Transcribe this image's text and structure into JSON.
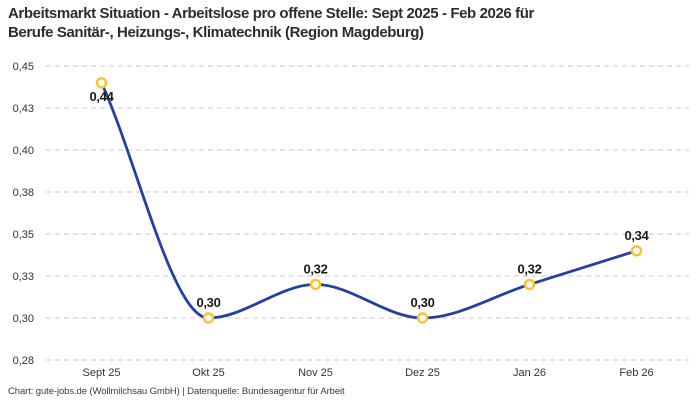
{
  "title_lines": [
    "Arbeitsmarkt Situation - Arbeitslose pro offene Stelle: Sept 2025 - Feb 2026 für",
    "Berufe Sanitär-, Heizungs-, Klimatechnik (Region Magdeburg)"
  ],
  "footer": "Chart: gute-jobs.de (Wollmilchsau GmbH) | Datenquelle: Bundesagentur für Arbeit",
  "chart_data": {
    "type": "line",
    "title": "Arbeitsmarkt Situation - Arbeitslose pro offene Stelle: Sept 2025 - Feb 2026 für Berufe Sanitär-, Heizungs-, Klimatechnik (Region Magdeburg)",
    "categories": [
      "Sept 25",
      "Okt 25",
      "Nov 25",
      "Dez 25",
      "Jan 26",
      "Feb 26"
    ],
    "values": [
      0.44,
      0.3,
      0.32,
      0.3,
      0.32,
      0.34
    ],
    "point_labels": [
      "0,44",
      "0,30",
      "0,32",
      "0,30",
      "0,32",
      "0,34"
    ],
    "label_positions": [
      "below",
      "above",
      "above",
      "above",
      "above",
      "above"
    ],
    "y_ticks": [
      0.275,
      0.3,
      0.325,
      0.35,
      0.375,
      0.4,
      0.425,
      0.45
    ],
    "y_tick_labels": [
      "0,28",
      "0,30",
      "0,33",
      "0,35",
      "0,38",
      "0,40",
      "0,43",
      "0,45"
    ],
    "ylim": [
      0.275,
      0.45
    ],
    "xlabel": "",
    "ylabel": "",
    "legend": "none",
    "grid": "dashed-horizontal",
    "curve": "monotone-spline",
    "colors": {
      "line": "#2340A3",
      "marker_stroke": "#F9C22E",
      "marker_fill": "#ffffff",
      "grid": "#c9c9c9",
      "tick_text": "#333333",
      "point_label": "#1a1a1a",
      "title": "#2d2d2d",
      "footer": "#3c3c3c",
      "background": "#ffffff"
    }
  }
}
